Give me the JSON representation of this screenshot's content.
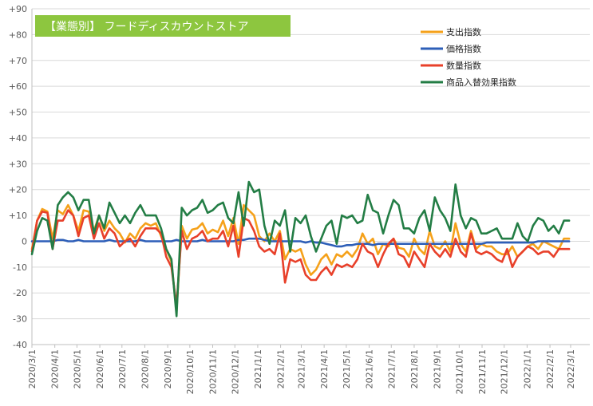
{
  "chart_data": {
    "type": "line",
    "title": "【業態別】 フードディスカウントストア",
    "xlabel": "",
    "ylabel": "",
    "ylim": [
      -40,
      90
    ],
    "y_ticks": [
      {
        "value": 90,
        "label": "+90"
      },
      {
        "value": 80,
        "label": "+80"
      },
      {
        "value": 70,
        "label": "+70"
      },
      {
        "value": 60,
        "label": "+60"
      },
      {
        "value": 50,
        "label": "+50"
      },
      {
        "value": 40,
        "label": "+40"
      },
      {
        "value": 30,
        "label": "+30"
      },
      {
        "value": 20,
        "label": "+20"
      },
      {
        "value": 10,
        "label": "+10"
      },
      {
        "value": 0,
        "label": "0"
      },
      {
        "value": -10,
        "label": "-10"
      },
      {
        "value": -20,
        "label": "-20"
      },
      {
        "value": -30,
        "label": "-30"
      },
      {
        "value": -40,
        "label": "-40"
      }
    ],
    "x_ticks": [
      "2020/3/1",
      "2020/4/1",
      "2020/5/1",
      "2020/6/1",
      "2020/7/1",
      "2020/8/1",
      "2020/9/1",
      "2020/10/1",
      "2020/11/1",
      "2020/12/1",
      "2021/1/1",
      "2021/2/1",
      "2021/3/1",
      "2021/4/1",
      "2021/5/1",
      "2021/6/1",
      "2021/7/1",
      "2021/8/1",
      "2021/9/1",
      "2021/10/1",
      "2021/11/1",
      "2021/12/1",
      "2022/1/1",
      "2022/2/1",
      "2022/3/1"
    ],
    "x_start": "2020/3/1",
    "x_end": "2022/3/27",
    "x_interval": "weekly",
    "grid": true,
    "legend_position": "top-right",
    "series": [
      {
        "name": "支出指数",
        "color": "#f5a11a",
        "values": [
          -3,
          8,
          12.5,
          11.5,
          1,
          12,
          10.5,
          14,
          10,
          4,
          12,
          11.5,
          4,
          10,
          4,
          8,
          5,
          3,
          -0.5,
          3,
          1,
          5,
          7,
          6,
          7,
          2,
          -3,
          -8,
          -27,
          6,
          1,
          4.5,
          5,
          7,
          3,
          4.5,
          3.5,
          8,
          2,
          9,
          -1,
          14,
          12,
          10,
          2,
          0,
          3,
          0,
          4,
          -7,
          -3,
          -4,
          -3,
          -9,
          -13,
          -11,
          -7,
          -5,
          -9,
          -5,
          -6,
          -4,
          -6,
          -3,
          3,
          -1,
          1,
          -5,
          -1,
          -2,
          1,
          -2.5,
          -3,
          -6,
          1,
          -3,
          -5,
          4,
          -2,
          -3,
          0,
          -4,
          7,
          -1,
          -4,
          4,
          -3,
          -1,
          -2,
          -2,
          -4,
          -5,
          -5,
          -2,
          -6,
          -4,
          -2,
          -1,
          -3,
          0,
          -1,
          -2,
          -3,
          1,
          1
        ]
      },
      {
        "name": "価格指数",
        "color": "#2e5fb8",
        "values": [
          0,
          0,
          0,
          0,
          0,
          0.5,
          0.5,
          0,
          0,
          0.5,
          0,
          0,
          0,
          0,
          0,
          0.5,
          0,
          0,
          0,
          0,
          0,
          0.5,
          0,
          0,
          0,
          0,
          0,
          0,
          0.5,
          0,
          0,
          0,
          0,
          0.5,
          0,
          0,
          0,
          0,
          0,
          0,
          0.5,
          0.5,
          1,
          1,
          1,
          0.5,
          0,
          0,
          0,
          0,
          0,
          0,
          0,
          -0.5,
          0,
          -0.5,
          -0.5,
          -1,
          -1.5,
          -2,
          -2,
          -1.5,
          -1.5,
          -1,
          -1,
          -1,
          -1.5,
          -1,
          -1,
          -1,
          -1,
          -1,
          -1,
          -1,
          -1,
          -1,
          -1,
          -1,
          -1,
          -1,
          -1,
          -1,
          -1,
          -1,
          -1,
          -1,
          -1,
          -1,
          -0.5,
          -0.5,
          -0.5,
          -0.5,
          -0.5,
          -0.5,
          -0.5,
          -0.5,
          -0.5,
          -0.5,
          0,
          0,
          0,
          0,
          0,
          0,
          0
        ]
      },
      {
        "name": "数量指数",
        "color": "#e8402a",
        "values": [
          -4,
          8,
          11.5,
          11,
          -3,
          8,
          8,
          12,
          10,
          2,
          9,
          10,
          1,
          7,
          1,
          5,
          3,
          -2,
          0,
          1,
          -2,
          2,
          5,
          5,
          5,
          3,
          -6,
          -10,
          -25,
          4,
          -3,
          1,
          2,
          4,
          0,
          1,
          1,
          4,
          -2,
          6,
          -6,
          9,
          8,
          4,
          -2,
          -4,
          -3,
          -5,
          3,
          -16,
          -7,
          -8,
          -7,
          -13,
          -15,
          -15,
          -12,
          -10,
          -13,
          -9,
          -10,
          -9,
          -10,
          -7,
          -1,
          -4,
          -5,
          -10,
          -5,
          -1,
          1,
          -5,
          -6,
          -10,
          -4,
          -7,
          -10,
          -1,
          -4,
          -6,
          -3,
          -6,
          1,
          -4,
          -6,
          3,
          -4,
          -5,
          -4,
          -5,
          -7,
          -8,
          -3,
          -10,
          -6,
          -4,
          -2,
          -3,
          -5,
          -4,
          -4,
          -6,
          -3,
          -3,
          -3
        ]
      },
      {
        "name": "商品入替効果指数",
        "color": "#237d45",
        "values": [
          -5,
          4,
          9,
          8,
          -3,
          14,
          17,
          19,
          17,
          12,
          16,
          16,
          3,
          10,
          5,
          15,
          11,
          7,
          10,
          7,
          11,
          14,
          10,
          10,
          10,
          5,
          -3,
          -7,
          -29,
          13,
          10,
          12,
          13,
          16,
          11,
          12,
          14,
          15,
          9,
          7,
          19,
          6,
          23,
          19,
          20,
          6,
          -1,
          8,
          6,
          12,
          -4,
          9,
          7,
          10,
          2,
          -4,
          1,
          6,
          8,
          -1,
          10,
          9,
          10,
          7,
          8,
          18,
          12,
          11,
          3,
          10,
          16,
          14,
          5,
          5,
          3,
          9,
          12,
          4,
          17,
          12,
          9,
          4,
          22,
          10,
          5,
          9,
          8,
          3,
          3,
          4,
          5,
          1,
          1,
          1,
          7,
          2,
          0,
          6,
          9,
          8,
          4,
          6,
          3,
          8,
          8
        ]
      }
    ]
  },
  "colors": {
    "title_background": "#8dc63f",
    "grid": "#d9d9d9",
    "axis": "#bfbfbf"
  }
}
